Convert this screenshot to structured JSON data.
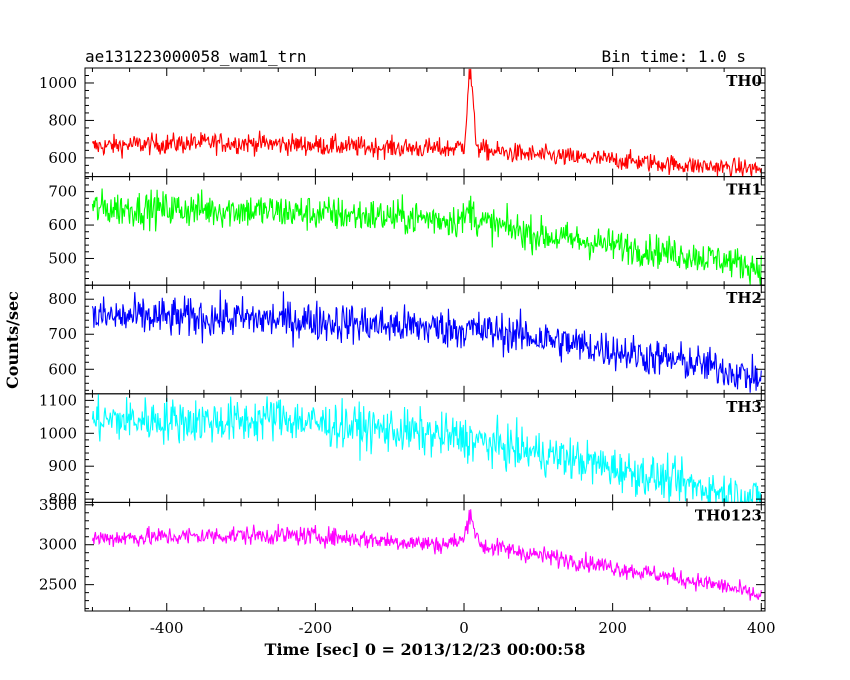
{
  "chart_data": {
    "type": "line",
    "title": "ae131223000058_wam1_trn",
    "subtitle": "Bin time: 1.0 s",
    "xlabel": "Time [sec] 0 = 2013/12/23 00:00:58",
    "ylabel": "Counts/sec",
    "xlim": [
      -510,
      405
    ],
    "xticks": [
      -400,
      -200,
      0,
      200,
      400
    ],
    "grid": false,
    "panels": [
      {
        "name": "TH0",
        "color": "#ff0000",
        "ylim": [
          500,
          1080
        ],
        "yticks": [
          600,
          800,
          1000
        ],
        "series": {
          "x": [
            -500,
            -450,
            -400,
            -350,
            -300,
            -250,
            -200,
            -150,
            -100,
            -50,
            -20,
            0,
            3,
            6,
            9,
            12,
            15,
            20,
            30,
            50,
            100,
            150,
            200,
            250,
            300,
            350,
            400
          ],
          "y": [
            660,
            670,
            675,
            680,
            680,
            675,
            668,
            660,
            655,
            650,
            648,
            665,
            800,
            1000,
            1060,
            900,
            720,
            650,
            640,
            630,
            615,
            600,
            590,
            575,
            560,
            550,
            540
          ]
        }
      },
      {
        "name": "TH1",
        "color": "#00ff00",
        "ylim": [
          420,
          745
        ],
        "yticks": [
          500,
          600,
          700
        ],
        "series": {
          "x": [
            -500,
            -400,
            -300,
            -200,
            -100,
            0,
            8,
            20,
            50,
            100,
            150,
            200,
            250,
            300,
            350,
            400
          ],
          "y": [
            650,
            648,
            645,
            635,
            625,
            615,
            650,
            610,
            595,
            570,
            555,
            540,
            525,
            510,
            495,
            470
          ]
        }
      },
      {
        "name": "TH2",
        "color": "#0000ff",
        "ylim": [
          530,
          840
        ],
        "yticks": [
          600,
          700,
          800
        ],
        "series": {
          "x": [
            -500,
            -400,
            -300,
            -200,
            -100,
            0,
            50,
            100,
            150,
            200,
            250,
            300,
            350,
            400
          ],
          "y": [
            750,
            748,
            745,
            738,
            725,
            715,
            705,
            690,
            670,
            655,
            635,
            620,
            600,
            570
          ]
        }
      },
      {
        "name": "TH3",
        "color": "#00ffff",
        "ylim": [
          790,
          1120
        ],
        "yticks": [
          800,
          900,
          1000,
          1100
        ],
        "series": {
          "x": [
            -500,
            -400,
            -300,
            -250,
            -200,
            -100,
            0,
            50,
            100,
            150,
            200,
            250,
            300,
            350,
            400
          ],
          "y": [
            1040,
            1040,
            1035,
            1050,
            1030,
            1010,
            985,
            960,
            940,
            920,
            895,
            870,
            845,
            820,
            800
          ]
        }
      },
      {
        "name": "TH0123",
        "color": "#ff00ff",
        "ylim": [
          2170,
          3530
        ],
        "yticks": [
          2500,
          3000,
          3500
        ],
        "series": {
          "x": [
            -500,
            -400,
            -300,
            -200,
            -100,
            -30,
            0,
            3,
            6,
            9,
            12,
            16,
            25,
            50,
            100,
            150,
            200,
            250,
            300,
            350,
            400
          ],
          "y": [
            3080,
            3100,
            3120,
            3110,
            3050,
            3000,
            3060,
            3200,
            3350,
            3420,
            3300,
            3100,
            2980,
            2950,
            2870,
            2800,
            2720,
            2640,
            2560,
            2480,
            2350
          ]
        }
      }
    ]
  }
}
